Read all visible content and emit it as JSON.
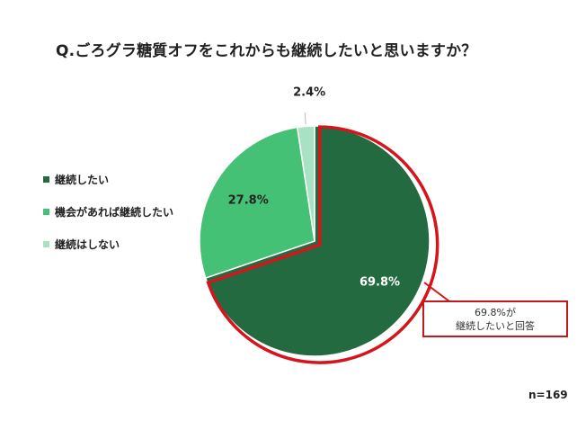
{
  "chart_data": {
    "type": "pie",
    "title": "Q.ごろグラ糖質オフをこれからも継続したいと思いますか？",
    "slices": [
      {
        "name": "継続したい",
        "value": 69.8,
        "label": "69.8%",
        "color": "#236a41"
      },
      {
        "name": "機会があれば継続したい",
        "value": 27.8,
        "label": "27.8%",
        "color": "#45c175"
      },
      {
        "name": "継続はしない",
        "value": 2.4,
        "label": "2.4%",
        "color": "#a8e2c3"
      }
    ],
    "highlight_color": "#d4151c",
    "legend_position": "left",
    "annotation": {
      "line1": "69.8%が",
      "line2": "継続したいと回答"
    },
    "sample_size": "n=169"
  }
}
